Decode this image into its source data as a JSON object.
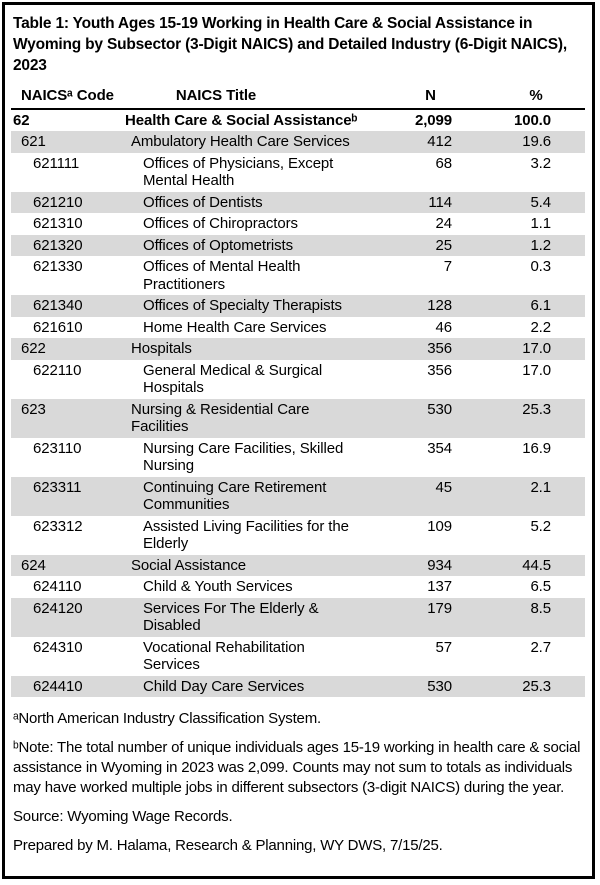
{
  "title": "Table 1: Youth Ages 15-19 Working in Health Care & Social Assistance in Wyoming by Subsector (3-Digit NAICS) and Detailed Industry (6-Digit NAICS), 2023",
  "colors": {
    "row_shading": "#d9d9d9",
    "border": "#000000",
    "text": "#000000"
  },
  "table": {
    "headers": {
      "code": "NAICSᵃ Code",
      "title": "NAICS Title",
      "n": "N",
      "pct": "%"
    },
    "rows": [
      {
        "code": "62",
        "title": "Health Care & Social Assistanceᵇ",
        "n": "2,099",
        "pct": "100.0",
        "level": 1,
        "bold": true,
        "shaded": false
      },
      {
        "code": "621",
        "title": "Ambulatory Health Care Services",
        "n": "412",
        "pct": "19.6",
        "level": 2,
        "bold": false,
        "shaded": true
      },
      {
        "code": "621111",
        "title": "Offices of Physicians, Except Mental Health",
        "n": "68",
        "pct": "3.2",
        "level": 3,
        "bold": false,
        "shaded": false
      },
      {
        "code": "621210",
        "title": "Offices of Dentists",
        "n": "114",
        "pct": "5.4",
        "level": 3,
        "bold": false,
        "shaded": true
      },
      {
        "code": "621310",
        "title": "Offices of Chiropractors",
        "n": "24",
        "pct": "1.1",
        "level": 3,
        "bold": false,
        "shaded": false
      },
      {
        "code": "621320",
        "title": "Offices of Optometrists",
        "n": "25",
        "pct": "1.2",
        "level": 3,
        "bold": false,
        "shaded": true
      },
      {
        "code": "621330",
        "title": "Offices of Mental Health Practitioners",
        "n": "7",
        "pct": "0.3",
        "level": 3,
        "bold": false,
        "shaded": false
      },
      {
        "code": "621340",
        "title": "Offices of Specialty Therapists",
        "n": "128",
        "pct": "6.1",
        "level": 3,
        "bold": false,
        "shaded": true
      },
      {
        "code": "621610",
        "title": "Home Health Care Services",
        "n": "46",
        "pct": "2.2",
        "level": 3,
        "bold": false,
        "shaded": false
      },
      {
        "code": "622",
        "title": "Hospitals",
        "n": "356",
        "pct": "17.0",
        "level": 2,
        "bold": false,
        "shaded": true
      },
      {
        "code": "622110",
        "title": "General Medical & Surgical Hospitals",
        "n": "356",
        "pct": "17.0",
        "level": 3,
        "bold": false,
        "shaded": false
      },
      {
        "code": "623",
        "title": "Nursing & Residential Care Facilities",
        "n": "530",
        "pct": "25.3",
        "level": 2,
        "bold": false,
        "shaded": true
      },
      {
        "code": "623110",
        "title": "Nursing Care Facilities, Skilled Nursing",
        "n": "354",
        "pct": "16.9",
        "level": 3,
        "bold": false,
        "shaded": false
      },
      {
        "code": "623311",
        "title": "Continuing Care Retirement Communities",
        "n": "45",
        "pct": "2.1",
        "level": 3,
        "bold": false,
        "shaded": true
      },
      {
        "code": "623312",
        "title": "Assisted Living Facilities for the Elderly",
        "n": "109",
        "pct": "5.2",
        "level": 3,
        "bold": false,
        "shaded": false
      },
      {
        "code": "624",
        "title": "Social Assistance",
        "n": "934",
        "pct": "44.5",
        "level": 2,
        "bold": false,
        "shaded": true
      },
      {
        "code": "624110",
        "title": "Child & Youth Services",
        "n": "137",
        "pct": "6.5",
        "level": 3,
        "bold": false,
        "shaded": false
      },
      {
        "code": "624120",
        "title": "Services For The Elderly & Disabled",
        "n": "179",
        "pct": "8.5",
        "level": 3,
        "bold": false,
        "shaded": true
      },
      {
        "code": "624310",
        "title": "Vocational Rehabilitation Services",
        "n": "57",
        "pct": "2.7",
        "level": 3,
        "bold": false,
        "shaded": false
      },
      {
        "code": "624410",
        "title": "Child Day Care Services",
        "n": "530",
        "pct": "25.3",
        "level": 3,
        "bold": false,
        "shaded": true
      }
    ]
  },
  "footnotes": {
    "a": "ᵃNorth American Industry Classification System.",
    "b": "ᵇNote: The total number of unique individuals ages 15-19 working in health care & social assistance in Wyoming in 2023 was 2,099. Counts may not sum to totals as individuals may have worked multiple jobs in different subsectors (3-digit NAICS) during the year.",
    "source": "Source: Wyoming Wage Records.",
    "prepared": "Prepared by M. Halama, Research & Planning, WY DWS, 7/15/25."
  }
}
